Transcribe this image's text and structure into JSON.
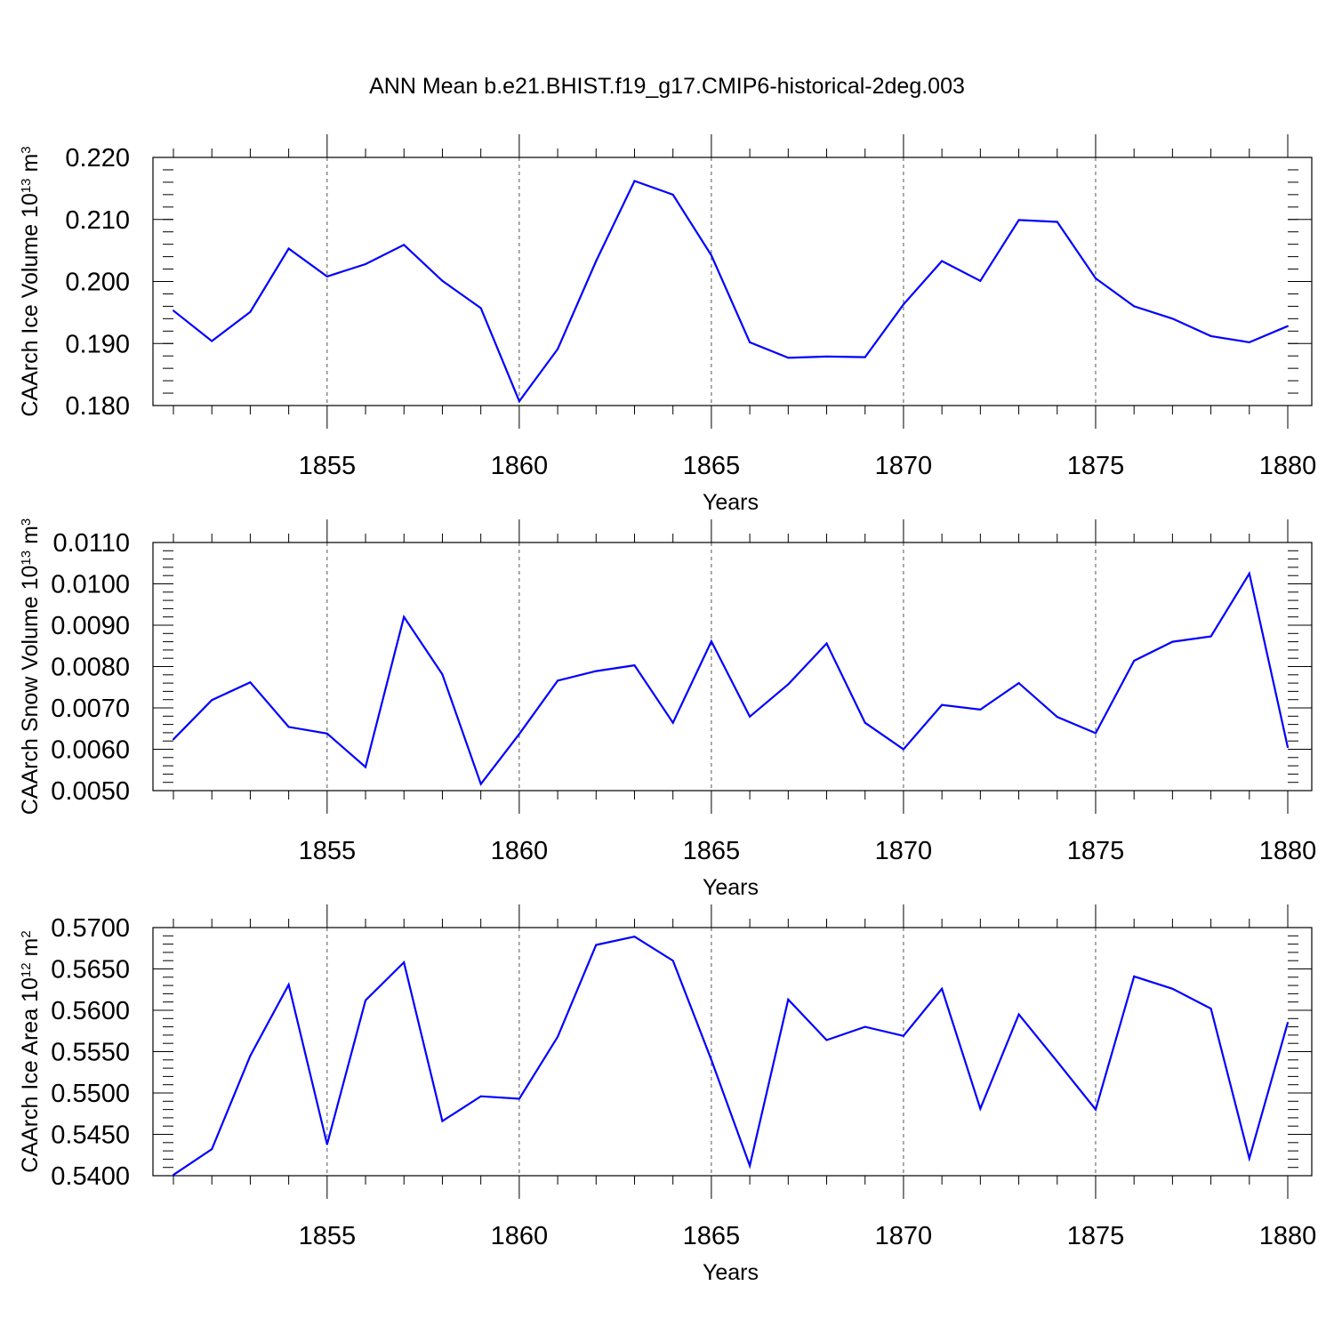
{
  "title": "ANN Mean b.e21.BHIST.f19_g17.CMIP6-historical-2deg.003",
  "colors": {
    "series": "#0000ff",
    "axes": "#000000",
    "grid": "#555555"
  },
  "chart_data": [
    {
      "type": "line",
      "title": "",
      "xlabel": "Years",
      "ylabel": {
        "main": "CAArch Ice Volume 10",
        "exp": "13",
        "unit": " m",
        "unit_exp": "3"
      },
      "xlim": [
        1851,
        1880
      ],
      "ylim": [
        0.18,
        0.22
      ],
      "x_ticks": [
        1855,
        1860,
        1865,
        1870,
        1875,
        1880
      ],
      "y_ticks": [
        "0.180",
        "0.190",
        "0.200",
        "0.210",
        "0.220"
      ],
      "y_minor_step": 0.002,
      "grid": "vertical dashed at major x ticks",
      "x": [
        1851,
        1852,
        1853,
        1854,
        1855,
        1856,
        1857,
        1858,
        1859,
        1860,
        1861,
        1862,
        1863,
        1864,
        1865,
        1866,
        1867,
        1868,
        1869,
        1870,
        1871,
        1872,
        1873,
        1874,
        1875,
        1876,
        1877,
        1878,
        1879,
        1880
      ],
      "values": [
        0.1953,
        0.1904,
        0.1951,
        0.2053,
        0.2008,
        0.2028,
        0.2059,
        0.2001,
        0.1957,
        0.1807,
        0.1891,
        0.2033,
        0.2162,
        0.214,
        0.2042,
        0.1902,
        0.1877,
        0.1879,
        0.1878,
        0.1963,
        0.2033,
        0.2001,
        0.2099,
        0.2096,
        0.2005,
        0.196,
        0.194,
        0.1912,
        0.1902,
        0.1928
      ]
    },
    {
      "type": "line",
      "title": "",
      "xlabel": "Years",
      "ylabel": {
        "main": "CAArch Snow Volume 10",
        "exp": "13",
        "unit": " m",
        "unit_exp": "3"
      },
      "xlim": [
        1851,
        1880
      ],
      "ylim": [
        0.005,
        0.011
      ],
      "x_ticks": [
        1855,
        1860,
        1865,
        1870,
        1875,
        1880
      ],
      "y_ticks": [
        "0.0050",
        "0.0060",
        "0.0070",
        "0.0080",
        "0.0090",
        "0.0100",
        "0.0110"
      ],
      "y_minor_step": 0.0002,
      "grid": "vertical dashed at major x ticks",
      "x": [
        1851,
        1852,
        1853,
        1854,
        1855,
        1856,
        1857,
        1858,
        1859,
        1860,
        1861,
        1862,
        1863,
        1864,
        1865,
        1866,
        1867,
        1868,
        1869,
        1870,
        1871,
        1872,
        1873,
        1874,
        1875,
        1876,
        1877,
        1878,
        1879,
        1880
      ],
      "values": [
        0.00624,
        0.00719,
        0.00762,
        0.00654,
        0.00638,
        0.00557,
        0.0092,
        0.00781,
        0.00516,
        0.00637,
        0.00766,
        0.00789,
        0.00803,
        0.00664,
        0.00861,
        0.00679,
        0.00757,
        0.00856,
        0.00664,
        0.006,
        0.00707,
        0.00696,
        0.0076,
        0.00678,
        0.00639,
        0.00814,
        0.0086,
        0.00873,
        0.01025,
        0.00605
      ]
    },
    {
      "type": "line",
      "title": "",
      "xlabel": "Years",
      "ylabel": {
        "main": "CAArch Ice Area 10",
        "exp": "12",
        "unit": " m",
        "unit_exp": "2"
      },
      "xlim": [
        1851,
        1880
      ],
      "ylim": [
        0.54,
        0.57
      ],
      "x_ticks": [
        1855,
        1860,
        1865,
        1870,
        1875,
        1880
      ],
      "y_ticks": [
        "0.5400",
        "0.5450",
        "0.5500",
        "0.5550",
        "0.5600",
        "0.5650",
        "0.5700"
      ],
      "y_minor_step": 0.001,
      "grid": "vertical dashed at major x ticks",
      "x": [
        1851,
        1852,
        1853,
        1854,
        1855,
        1856,
        1857,
        1858,
        1859,
        1860,
        1861,
        1862,
        1863,
        1864,
        1865,
        1866,
        1867,
        1868,
        1869,
        1870,
        1871,
        1872,
        1873,
        1874,
        1875,
        1876,
        1877,
        1878,
        1879,
        1880
      ],
      "values": [
        0.5401,
        0.5432,
        0.5545,
        0.5631,
        0.5438,
        0.5612,
        0.5658,
        0.5466,
        0.5496,
        0.5493,
        0.5568,
        0.5679,
        0.5689,
        0.566,
        0.554,
        0.5412,
        0.5613,
        0.5564,
        0.558,
        0.5569,
        0.5626,
        0.5481,
        0.5595,
        0.5538,
        0.548,
        0.5641,
        0.5626,
        0.5602,
        0.5421,
        0.5585
      ]
    }
  ]
}
